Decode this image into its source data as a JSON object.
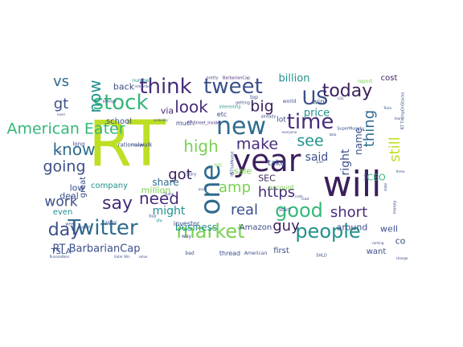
{
  "palette": {
    "dark_purple": "#3b1f5c",
    "purple": "#472c7a",
    "indigo": "#3b4f8a",
    "blue": "#2f6b8e",
    "teal": "#21918c",
    "green": "#35b779",
    "lime": "#7ad151",
    "yellow_green": "#bddf26"
  },
  "words": [
    {
      "text": "RT",
      "color": "yellow_green",
      "size": 78
    },
    {
      "text": "will",
      "color": "dark_purple",
      "size": 44
    },
    {
      "text": "year",
      "color": "dark_purple",
      "size": 38
    },
    {
      "text": "one",
      "color": "blue",
      "size": 34
    },
    {
      "text": "Twitter",
      "color": "blue",
      "size": 26
    },
    {
      "text": "new",
      "color": "blue",
      "size": 30
    },
    {
      "text": "time",
      "color": "purple",
      "size": 26
    },
    {
      "text": "stock",
      "color": "green",
      "size": 26
    },
    {
      "text": "think",
      "color": "purple",
      "size": 26
    },
    {
      "text": "tweet",
      "color": "indigo",
      "size": 26
    },
    {
      "text": "US",
      "color": "indigo",
      "size": 24
    },
    {
      "text": "today",
      "color": "dark_purple",
      "size": 22
    },
    {
      "text": "people",
      "color": "teal",
      "size": 24
    },
    {
      "text": "market",
      "color": "lime",
      "size": 24
    },
    {
      "text": "good",
      "color": "green",
      "size": 24
    },
    {
      "text": "say",
      "color": "purple",
      "size": 22
    },
    {
      "text": "need",
      "color": "purple",
      "size": 20
    },
    {
      "text": "day",
      "color": "indigo",
      "size": 22
    },
    {
      "text": "American Eater",
      "color": "green",
      "size": 19
    },
    {
      "text": "know",
      "color": "blue",
      "size": 20
    },
    {
      "text": "now",
      "color": "teal",
      "size": 20
    },
    {
      "text": "vs",
      "color": "blue",
      "size": 18
    },
    {
      "text": "gt",
      "color": "indigo",
      "size": 18
    },
    {
      "text": "look",
      "color": "purple",
      "size": 20
    },
    {
      "text": "big",
      "color": "dark_purple",
      "size": 19
    },
    {
      "text": "high",
      "color": "lime",
      "size": 20
    },
    {
      "text": "make",
      "color": "purple",
      "size": 19
    },
    {
      "text": "see",
      "color": "teal",
      "size": 19
    },
    {
      "text": "thing",
      "color": "blue",
      "size": 18
    },
    {
      "text": "still",
      "color": "yellow_green",
      "size": 18
    },
    {
      "text": "going",
      "color": "indigo",
      "size": 19
    },
    {
      "text": "got",
      "color": "dark_purple",
      "size": 18
    },
    {
      "text": "amp",
      "color": "lime",
      "size": 18
    },
    {
      "text": "https",
      "color": "purple",
      "size": 18
    },
    {
      "text": "short",
      "color": "purple",
      "size": 18
    },
    {
      "text": "real",
      "color": "indigo",
      "size": 18
    },
    {
      "text": "work",
      "color": "indigo",
      "size": 17
    },
    {
      "text": "guy",
      "color": "dark_purple",
      "size": 18
    },
    {
      "text": "said",
      "color": "indigo",
      "size": 14
    },
    {
      "text": "right",
      "color": "indigo",
      "size": 14
    },
    {
      "text": "name",
      "color": "indigo",
      "size": 12
    },
    {
      "text": "might",
      "color": "teal",
      "size": 14
    },
    {
      "text": "share",
      "color": "blue",
      "size": 12
    },
    {
      "text": "RT BarbarianCap",
      "color": "indigo",
      "size": 13
    },
    {
      "text": "billion",
      "color": "teal",
      "size": 13
    },
    {
      "text": "price",
      "color": "teal",
      "size": 13
    },
    {
      "text": "business",
      "color": "teal",
      "size": 12
    },
    {
      "text": "back",
      "color": "indigo",
      "size": 11
    },
    {
      "text": "school",
      "color": "indigo",
      "size": 10
    },
    {
      "text": "company",
      "color": "teal",
      "size": 10
    },
    {
      "text": "million",
      "color": "lime",
      "size": 11
    },
    {
      "text": "sale",
      "color": "lime",
      "size": 11
    },
    {
      "text": "SEC",
      "color": "dark_purple",
      "size": 11
    },
    {
      "text": "take",
      "color": "indigo",
      "size": 10
    },
    {
      "text": "CEO",
      "color": "green",
      "size": 11
    },
    {
      "text": "around",
      "color": "indigo",
      "size": 11
    },
    {
      "text": "well",
      "color": "indigo",
      "size": 11
    },
    {
      "text": "want",
      "color": "indigo",
      "size": 10
    },
    {
      "text": "first",
      "color": "indigo",
      "size": 10
    },
    {
      "text": "Amazon",
      "color": "indigo",
      "size": 10
    },
    {
      "text": "TSLA",
      "color": "indigo",
      "size": 10
    },
    {
      "text": "deal",
      "color": "indigo",
      "size": 11
    },
    {
      "text": "low",
      "color": "indigo",
      "size": 11
    },
    {
      "text": "even",
      "color": "teal",
      "size": 10
    },
    {
      "text": "great",
      "color": "indigo",
      "size": 10
    },
    {
      "text": "via",
      "color": "purple",
      "size": 11
    },
    {
      "text": "cost",
      "color": "dark_purple",
      "size": 10
    },
    {
      "text": "co",
      "color": "indigo",
      "size": 11
    },
    {
      "text": "win",
      "color": "indigo",
      "size": 9
    },
    {
      "text": "lot",
      "color": "indigo",
      "size": 9
    },
    {
      "text": "etc",
      "color": "indigo",
      "size": 8
    },
    {
      "text": "much",
      "color": "indigo",
      "size": 8
    },
    {
      "text": "investor",
      "color": "indigo",
      "size": 8
    },
    {
      "text": "thread",
      "color": "indigo",
      "size": 8
    },
    {
      "text": "account",
      "color": "lime",
      "size": 8
    },
    {
      "text": "rationalwalk",
      "color": "indigo",
      "size": 7
    },
    {
      "text": "RT Street_Insider",
      "color": "purple",
      "size": 5
    },
    {
      "text": "RT TrumpOnStocks",
      "color": "indigo",
      "size": 5
    },
    {
      "text": "BarbarianCap",
      "color": "purple",
      "size": 5
    },
    {
      "text": "SuperMugatu",
      "color": "indigo",
      "size": 5
    },
    {
      "text": "ItsThaMoose",
      "color": "indigo",
      "size": 5
    },
    {
      "text": "RussianBear",
      "color": "indigo",
      "size": 4
    },
    {
      "text": "Eater Win",
      "color": "indigo",
      "size": 4
    },
    {
      "text": "American",
      "color": "indigo",
      "size": 6
    },
    {
      "text": "report",
      "color": "lime",
      "size": 6
    },
    {
      "text": "world",
      "color": "indigo",
      "size": 6
    },
    {
      "text": "top",
      "color": "indigo",
      "size": 6
    },
    {
      "text": "already",
      "color": "indigo",
      "size": 5
    },
    {
      "text": "start",
      "color": "indigo",
      "size": 6
    },
    {
      "text": "money",
      "color": "indigo",
      "size": 5
    },
    {
      "text": "week",
      "color": "indigo",
      "size": 5
    },
    {
      "text": "point",
      "color": "indigo",
      "size": 5
    },
    {
      "text": "global",
      "color": "indigo",
      "size": 5
    },
    {
      "text": "life",
      "color": "teal",
      "size": 5
    },
    {
      "text": "buy",
      "color": "indigo",
      "size": 5
    },
    {
      "text": "way",
      "color": "indigo",
      "size": 6
    },
    {
      "text": "bad",
      "color": "indigo",
      "size": 6
    },
    {
      "text": "Trump",
      "color": "indigo",
      "size": 4
    },
    {
      "text": "long",
      "color": "indigo",
      "size": 7
    },
    {
      "text": "number",
      "color": "teal",
      "size": 6
    },
    {
      "text": "always",
      "color": "indigo",
      "size": 5
    },
    {
      "text": "getting",
      "color": "indigo",
      "size": 5
    },
    {
      "text": "pretty",
      "color": "indigo",
      "size": 5
    },
    {
      "text": "index",
      "color": "indigo",
      "size": 5
    },
    {
      "text": "interesting",
      "color": "teal",
      "size": 5
    },
    {
      "text": "story",
      "color": "indigo",
      "size": 5
    },
    {
      "text": "level",
      "color": "indigo",
      "size": 4
    },
    {
      "text": "Tesla",
      "color": "indigo",
      "size": 4
    },
    {
      "text": "everyone",
      "color": "indigo",
      "size": 4
    },
    {
      "text": "least",
      "color": "indigo",
      "size": 4
    },
    {
      "text": "change",
      "color": "indigo",
      "size": 4
    },
    {
      "text": "coming",
      "color": "indigo",
      "size": 4
    },
    {
      "text": "NYC",
      "color": "lime",
      "size": 5
    },
    {
      "text": "SHLD",
      "color": "indigo",
      "size": 5
    },
    {
      "text": "LOL",
      "color": "indigo",
      "size": 4
    },
    {
      "text": "code",
      "color": "indigo",
      "size": 4
    },
    {
      "text": "state",
      "color": "indigo",
      "size": 4
    },
    {
      "text": "thought",
      "color": "indigo",
      "size": 4
    },
    {
      "text": "probably",
      "color": "indigo",
      "size": 4
    },
    {
      "text": "three",
      "color": "indigo",
      "size": 4
    },
    {
      "text": "team",
      "color": "indigo",
      "size": 4
    },
    {
      "text": "data",
      "color": "indigo",
      "size": 4
    },
    {
      "text": "part",
      "color": "indigo",
      "size": 4
    },
    {
      "text": "asset",
      "color": "indigo",
      "size": 4
    },
    {
      "text": "value",
      "color": "indigo",
      "size": 4
    },
    {
      "text": "remember",
      "color": "indigo",
      "size": 4
    },
    {
      "text": "re",
      "color": "indigo",
      "size": 5
    },
    {
      "text": "ad",
      "color": "indigo",
      "size": 4
    }
  ]
}
